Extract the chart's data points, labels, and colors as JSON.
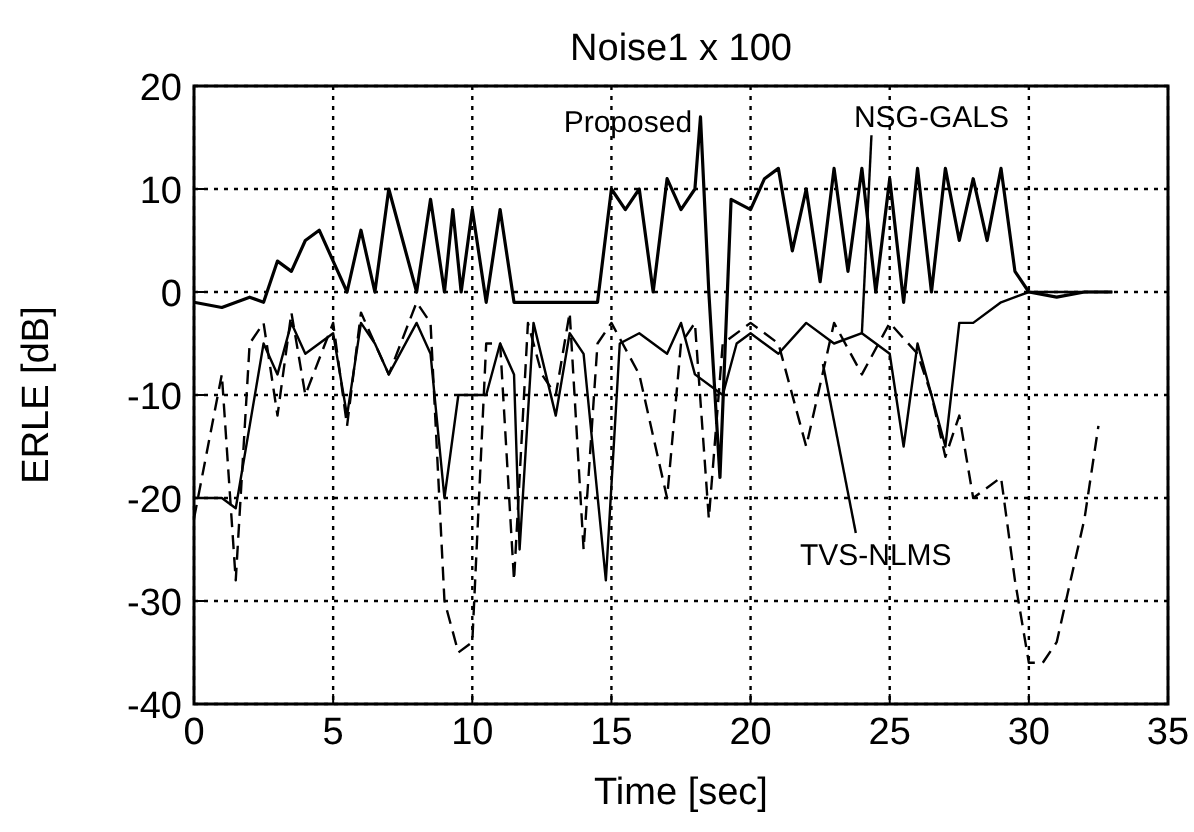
{
  "chart_data": {
    "type": "line",
    "title": "Noise1 x 100",
    "xlabel": "Time [sec]",
    "ylabel": "ERLE [dB]",
    "xlim": [
      0,
      35
    ],
    "ylim": [
      -40,
      20
    ],
    "xticks": [
      0,
      5,
      10,
      15,
      20,
      25,
      30,
      35
    ],
    "yticks": [
      -40,
      -30,
      -20,
      -10,
      0,
      10,
      20
    ],
    "grid": true,
    "series": [
      {
        "name": "Proposed",
        "color": "#000000",
        "line_style": "solid",
        "x": [
          0,
          1,
          2,
          2.5,
          3,
          3.5,
          4,
          4.5,
          5,
          5.5,
          6,
          6.5,
          7,
          7.5,
          8,
          8.5,
          9,
          9.3,
          9.6,
          10,
          10.5,
          11,
          11.5,
          12,
          13,
          14.5,
          15,
          15.5,
          16,
          16.5,
          17,
          17.5,
          18,
          18.2,
          18.5,
          18.9,
          19.3,
          20,
          20.5,
          21,
          21.5,
          22,
          22.5,
          23,
          23.5,
          24,
          24.5,
          25,
          25.5,
          26,
          26.5,
          27,
          27.5,
          28,
          28.5,
          29,
          29.5,
          30,
          31,
          32,
          33
        ],
        "values": [
          -1,
          -1.5,
          -0.5,
          -1,
          3,
          2,
          5,
          6,
          3,
          0,
          6,
          0,
          10,
          5,
          0,
          9,
          0,
          8,
          0,
          8,
          -1,
          8,
          -1,
          -1,
          -1,
          -1,
          10,
          8,
          10,
          0,
          11,
          8,
          10,
          17,
          0,
          -18,
          9,
          8,
          11,
          12,
          4,
          10,
          1,
          12,
          2,
          12,
          0,
          11,
          -1,
          12,
          0,
          12,
          5,
          11,
          5,
          12,
          2,
          0,
          -0.5,
          0,
          0
        ]
      },
      {
        "name": "NSG-GALS",
        "color": "#000000",
        "line_style": "solid",
        "x": [
          0,
          1,
          1.5,
          2.5,
          3,
          3.5,
          4,
          5,
          5.5,
          6,
          6.5,
          7,
          8,
          8.5,
          9,
          9.5,
          10.5,
          11,
          11.5,
          11.7,
          12.2,
          13,
          13.5,
          14,
          14.8,
          15.3,
          16,
          17,
          17.5,
          18,
          19,
          19.5,
          20,
          21,
          22,
          23,
          24,
          25,
          25.5,
          26,
          27,
          27.5,
          28,
          29,
          30,
          31,
          33
        ],
        "values": [
          -20,
          -20,
          -21,
          -5,
          -8,
          -3,
          -6,
          -4,
          -12,
          -3,
          -5,
          -8,
          -3,
          -6,
          -20,
          -10,
          -10,
          -5,
          -8,
          -25,
          -3,
          -12,
          -4,
          -6,
          -28,
          -5,
          -4,
          -6,
          -3,
          -8,
          -10,
          -5,
          -4,
          -6,
          -3,
          -5,
          -4,
          -6,
          -15,
          -5,
          -15,
          -3,
          -3,
          -1,
          0,
          0,
          0
        ]
      },
      {
        "name": "TVS-NLMS",
        "color": "#000000",
        "line_style": "dashed",
        "x": [
          0,
          0.5,
          1,
          1.5,
          2,
          2.5,
          3,
          3.5,
          4,
          5,
          5.5,
          6,
          7,
          8,
          8.5,
          9,
          9.5,
          10,
          10.5,
          11,
          11.5,
          12,
          12.5,
          13,
          13.5,
          14,
          14.5,
          15,
          16,
          17,
          17.5,
          18,
          18.5,
          19,
          20,
          21,
          22,
          23,
          24,
          25,
          26,
          26.5,
          27,
          27.5,
          28,
          29,
          29.5,
          30,
          30.5,
          31,
          32,
          32.5
        ],
        "values": [
          -22,
          -15,
          -8,
          -28,
          -5,
          -3,
          -12,
          -2,
          -10,
          -3,
          -13,
          -2,
          -8,
          -1,
          -3,
          -30,
          -35,
          -34,
          -5,
          -5,
          -28,
          -3,
          -8,
          -10,
          -2,
          -25,
          -5,
          -3,
          -8,
          -20,
          -5,
          -3,
          -22,
          -5,
          -3,
          -5,
          -15,
          -3,
          -8,
          -3,
          -6,
          -10,
          -16,
          -12,
          -20,
          -18,
          -28,
          -36,
          -36,
          -34,
          -22,
          -13
        ]
      }
    ]
  }
}
